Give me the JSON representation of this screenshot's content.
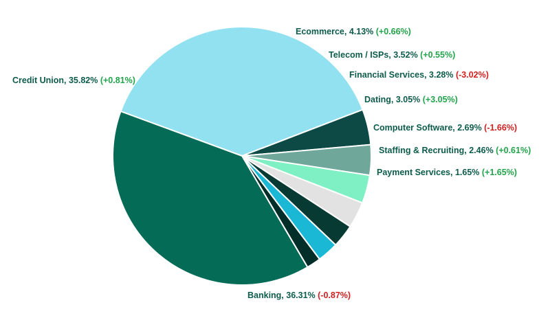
{
  "chart_data": {
    "type": "pie",
    "title": "",
    "start_angle_deg": 21,
    "direction": "counterclockwise-from-start",
    "slices": [
      {
        "label": "Credit Union",
        "value_text": "35.82%",
        "value": 35.82,
        "change_text": "(+0.81%)",
        "change": 0.81,
        "color": "#92e1f1"
      },
      {
        "label": "Ecommerce",
        "value_text": "4.13%",
        "value": 4.13,
        "change_text": "(+0.66%)",
        "change": 0.66,
        "color": "#0d4a46"
      },
      {
        "label": "Telecom / ISPs",
        "value_text": "3.52%",
        "value": 3.52,
        "change_text": "(+0.55%)",
        "change": 0.55,
        "color": "#6fa89a"
      },
      {
        "label": "Financial Services",
        "value_text": "3.28%",
        "value": 3.28,
        "change_text": "(-3.02%)",
        "change": -3.02,
        "color": "#7ff0c4"
      },
      {
        "label": "Dating",
        "value_text": "3.05%",
        "value": 3.05,
        "change_text": "(+3.05%)",
        "change": 3.05,
        "color": "#e2e2e2"
      },
      {
        "label": "Computer Software",
        "value_text": "2.69%",
        "value": 2.69,
        "change_text": "(-1.66%)",
        "change": -1.66,
        "color": "#063a33"
      },
      {
        "label": "Staffing & Recruiting",
        "value_text": "2.46%",
        "value": 2.46,
        "change_text": "(+0.61%)",
        "change": 0.61,
        "color": "#1ab8d4"
      },
      {
        "label": "Payment Services",
        "value_text": "1.65%",
        "value": 1.65,
        "change_text": "(+1.65%)",
        "change": 1.65,
        "color": "#022e29"
      },
      {
        "label": "Banking",
        "value_text": "36.31%",
        "value": 36.31,
        "change_text": "(-0.87%)",
        "change": -0.87,
        "color": "#036b56"
      }
    ],
    "label_colors": {
      "name": "#0d5c4b",
      "positive": "#21a44a",
      "negative": "#d21f1f"
    }
  }
}
